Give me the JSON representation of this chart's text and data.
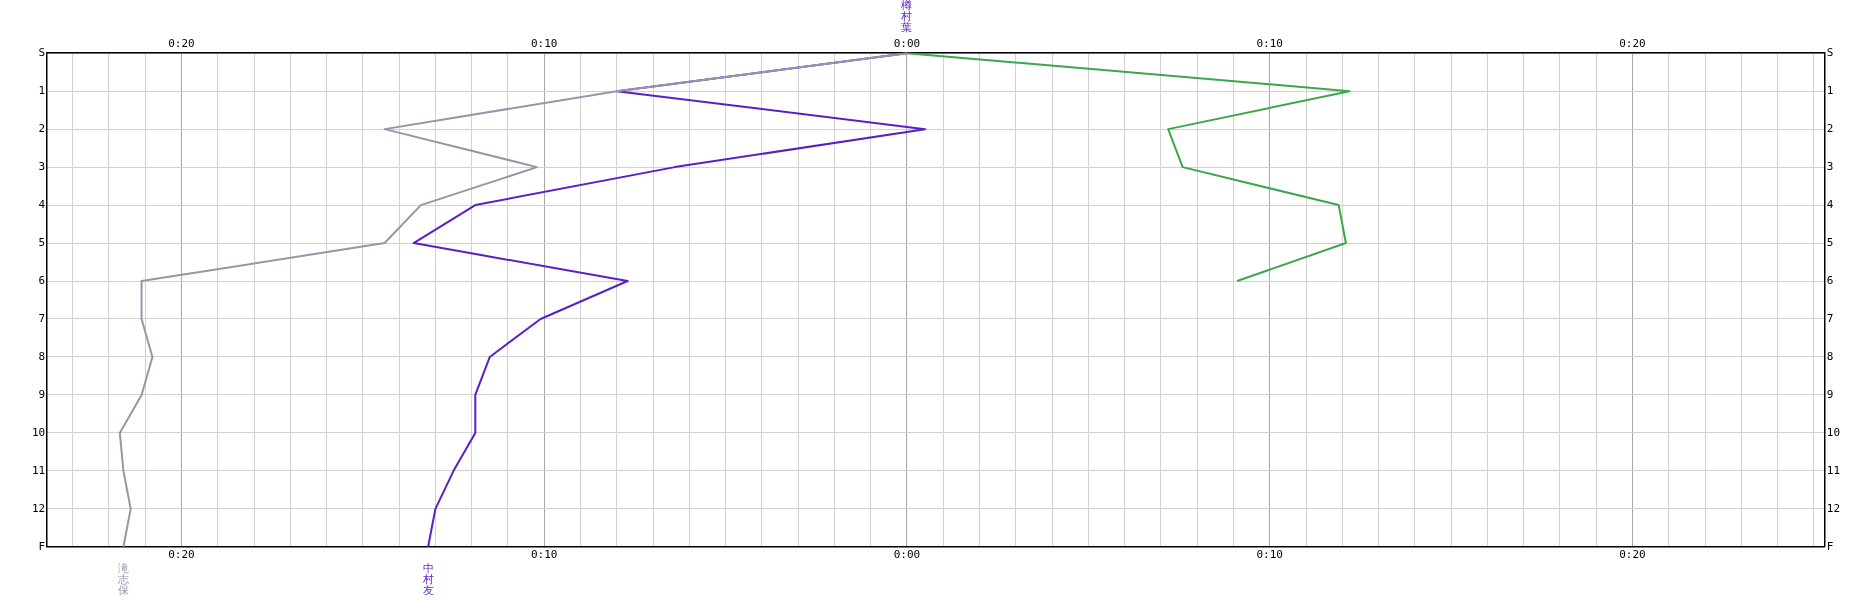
{
  "chart_data": {
    "type": "line",
    "orientation": "horizontal",
    "annotations": [
      "樽村葉"
    ],
    "categories": [
      "S",
      "1",
      "2",
      "3",
      "4",
      "5",
      "6",
      "7",
      "8",
      "9",
      "10",
      "11",
      "12",
      "F"
    ],
    "series": [
      {
        "name": "滝志保",
        "color": "#9a94a8",
        "values": [
          0,
          -8.0,
          -14.4,
          -10.2,
          -13.4,
          -14.4,
          -21.1,
          -21.1,
          -20.8,
          -21.1,
          -21.7,
          -21.6,
          -21.4,
          -21.6
        ]
      },
      {
        "name": "中村友",
        "color": "#5b1fc8",
        "values": [
          0,
          -8.0,
          0.5,
          -6.4,
          -11.9,
          -13.6,
          -7.7,
          -10.1,
          -11.5,
          -11.9,
          -11.9,
          -12.5,
          -13.0,
          -13.2
        ]
      },
      {
        "color": "#3aa84a",
        "values": [
          0,
          12.2,
          7.2,
          7.6,
          11.9,
          12.1,
          9.1,
          null,
          null,
          null,
          null,
          null,
          null,
          null
        ]
      }
    ],
    "xlim": [
      -23.7,
      25.3
    ],
    "xticks": [
      {
        "value": -23,
        "label": null
      },
      {
        "value": -22,
        "label": null
      },
      {
        "value": -21,
        "label": null
      },
      {
        "value": -20,
        "label": "0:20"
      },
      {
        "value": -19,
        "label": null
      },
      {
        "value": -18,
        "label": null
      },
      {
        "value": -17,
        "label": null
      },
      {
        "value": -16,
        "label": null
      },
      {
        "value": -15,
        "label": null
      },
      {
        "value": -14,
        "label": null
      },
      {
        "value": -13,
        "label": null
      },
      {
        "value": -12,
        "label": null
      },
      {
        "value": -11,
        "label": null
      },
      {
        "value": -10,
        "label": "0:10"
      },
      {
        "value": -9,
        "label": null
      },
      {
        "value": -8,
        "label": null
      },
      {
        "value": -7,
        "label": null
      },
      {
        "value": -6,
        "label": null
      },
      {
        "value": -5,
        "label": null
      },
      {
        "value": -4,
        "label": null
      },
      {
        "value": -3,
        "label": null
      },
      {
        "value": -2,
        "label": null
      },
      {
        "value": -1,
        "label": null
      },
      {
        "value": 0,
        "label": "0:00"
      },
      {
        "value": 1,
        "label": null
      },
      {
        "value": 2,
        "label": null
      },
      {
        "value": 3,
        "label": null
      },
      {
        "value": 4,
        "label": null
      },
      {
        "value": 5,
        "label": null
      },
      {
        "value": 6,
        "label": null
      },
      {
        "value": 7,
        "label": null
      },
      {
        "value": 8,
        "label": null
      },
      {
        "value": 9,
        "label": null
      },
      {
        "value": 10,
        "label": "0:10"
      },
      {
        "value": 11,
        "label": null
      },
      {
        "value": 12,
        "label": null
      },
      {
        "value": 13,
        "label": null
      },
      {
        "value": 14,
        "label": null
      },
      {
        "value": 15,
        "label": null
      },
      {
        "value": 16,
        "label": null
      },
      {
        "value": 17,
        "label": null
      },
      {
        "value": 18,
        "label": null
      },
      {
        "value": 19,
        "label": null
      },
      {
        "value": 20,
        "label": "0:20"
      },
      {
        "value": 21,
        "label": null
      },
      {
        "value": 22,
        "label": null
      },
      {
        "value": 23,
        "label": null
      },
      {
        "value": 24,
        "label": null
      },
      {
        "value": 25,
        "label": null
      }
    ],
    "x2lim": [
      -23.7,
      25.3
    ],
    "x2ticks": [
      {
        "value": -20,
        "label": "0:20"
      },
      {
        "value": -10,
        "label": "0:10"
      },
      {
        "value": 0,
        "label": "0:00"
      },
      {
        "value": 10,
        "label": "0:10"
      },
      {
        "value": 20,
        "label": "0:20"
      }
    ],
    "grid": true,
    "legend": false,
    "marker": "none",
    "line_style": "solid"
  }
}
